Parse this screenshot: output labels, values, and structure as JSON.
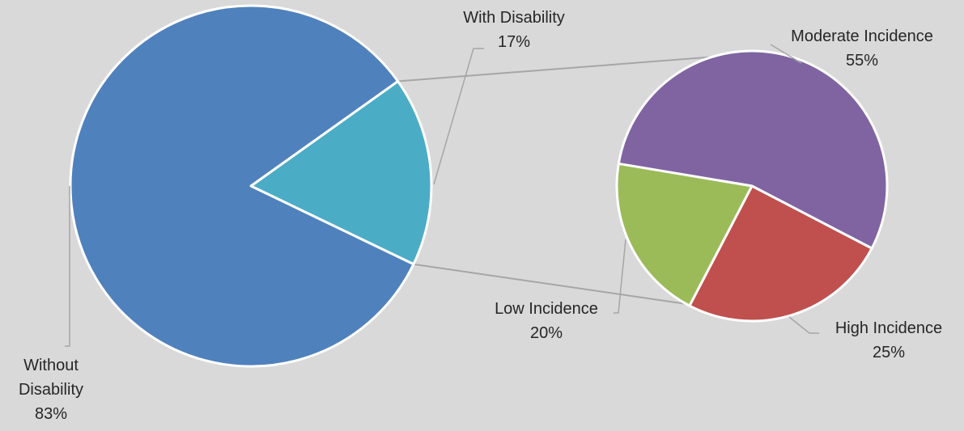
{
  "chart_data": {
    "type": "pie",
    "title": "",
    "background": "#d9d9d9",
    "slice_border": "#ffffff",
    "leader_color": "#a6a6a6",
    "main_pie": {
      "slices": [
        {
          "label": "With Disability",
          "value": 17,
          "value_label": "17%",
          "color": "#4bacc6"
        },
        {
          "label": "Without Disability",
          "label_lines": [
            "Without",
            "Disability"
          ],
          "value": 83,
          "value_label": "83%",
          "color": "#4f81bd"
        }
      ]
    },
    "sub_pie": {
      "slices": [
        {
          "label": "Moderate Incidence",
          "value": 55,
          "value_label": "55%",
          "color": "#8064a2"
        },
        {
          "label": "High Incidence",
          "value": 25,
          "value_label": "25%",
          "color": "#c0504d"
        },
        {
          "label": "Low Incidence",
          "value": 20,
          "value_label": "20%",
          "color": "#9bbb59"
        }
      ]
    }
  }
}
